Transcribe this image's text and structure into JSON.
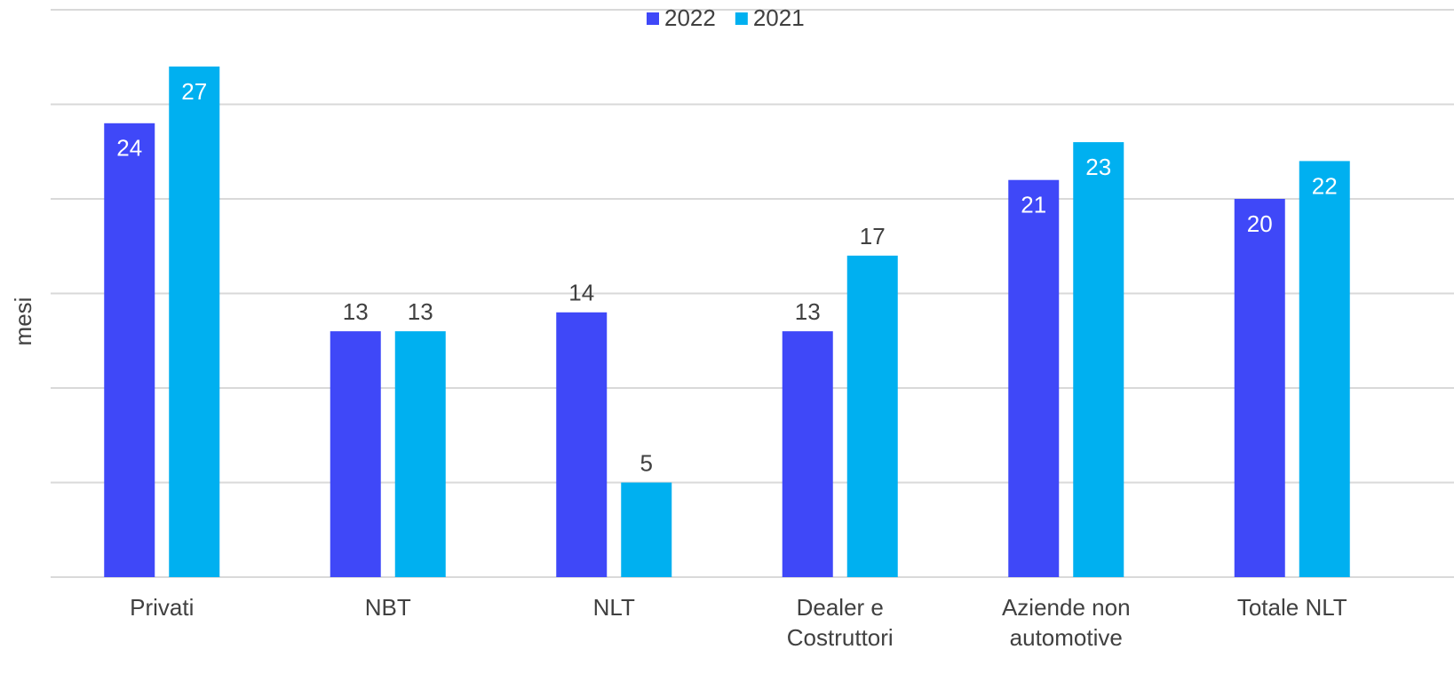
{
  "chart_data": {
    "type": "bar",
    "y_label": "mesi",
    "categories": [
      "Privati",
      "NBT",
      "NLT",
      "Dealer e Costruttori",
      "Aziende non automotive",
      "Totale NLT"
    ],
    "series": [
      {
        "name": "2022",
        "color": "#3f48f8",
        "values": [
          24,
          13,
          14,
          13,
          21,
          20
        ]
      },
      {
        "name": "2021",
        "color": "#00b0f0",
        "values": [
          27,
          13,
          5,
          17,
          23,
          22
        ]
      }
    ],
    "ylim": [
      0,
      30
    ],
    "yticks": [
      0,
      5,
      10,
      15,
      20,
      25,
      30
    ],
    "grid": true,
    "legend": "top"
  }
}
